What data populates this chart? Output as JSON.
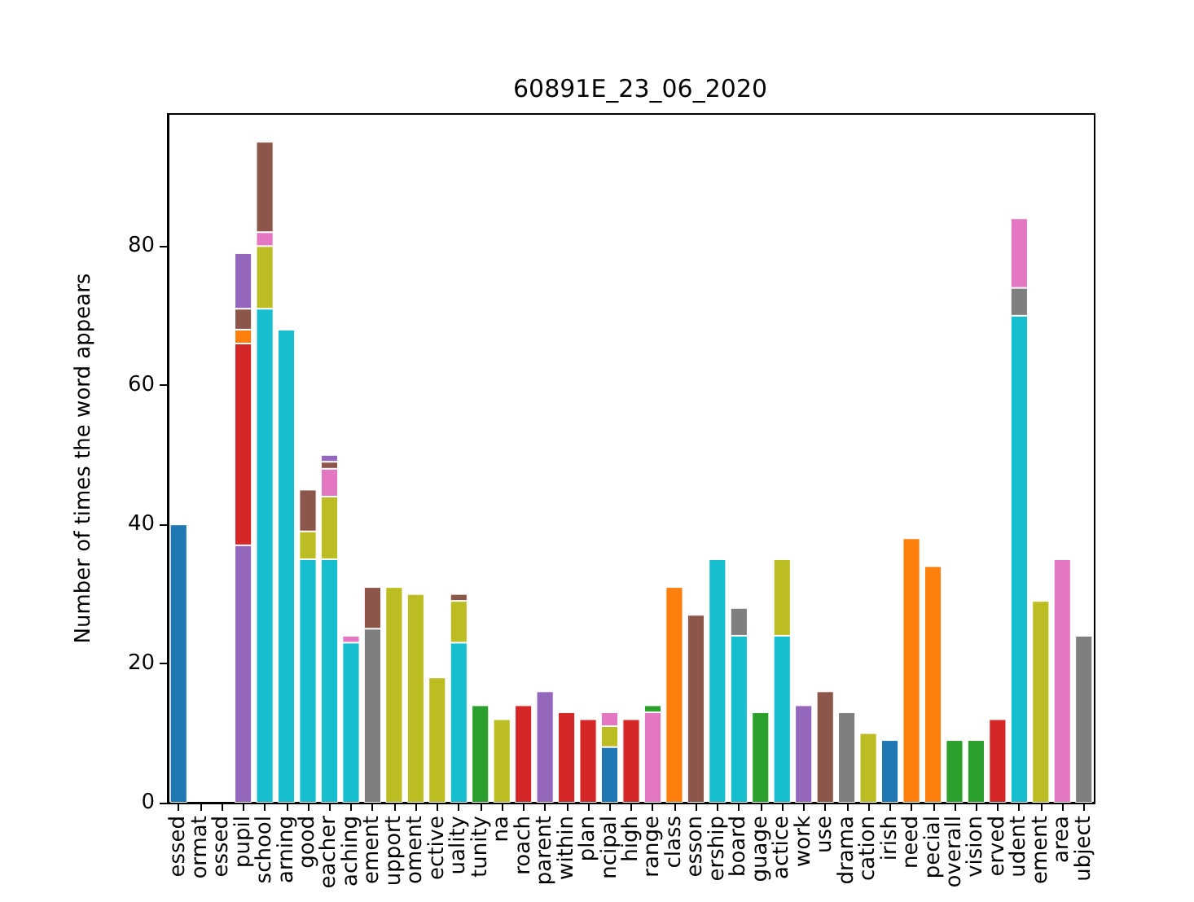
{
  "chart_data": {
    "type": "bar",
    "title": "60891E_23_06_2020",
    "ylabel": "Number of times the word appears",
    "stacked": true,
    "categories": [
      "essed",
      "ormat",
      "essed",
      "pupil",
      "school",
      "arning",
      "good",
      "eacher",
      "aching",
      "ement",
      "upport",
      "oment",
      "ective",
      "uality",
      "tunity",
      "na",
      "roach",
      "parent",
      "within",
      "plan",
      "ncipal",
      "high",
      "range",
      "class",
      "esson",
      "ership",
      "board",
      "guage",
      "actice",
      "work",
      "use",
      "drama",
      "cation",
      "irish",
      "need",
      "pecial",
      "overall",
      "vision",
      "erved",
      "udent",
      "ement",
      "area",
      "ubject"
    ],
    "series": [
      {
        "values": [
          40,
          null,
          null,
          37,
          71,
          68,
          35,
          35,
          23,
          25,
          31,
          30,
          18,
          23,
          14,
          12,
          14,
          16,
          13,
          12,
          8,
          12,
          13,
          31,
          27,
          35,
          24,
          13,
          24,
          14,
          16,
          13,
          10,
          9,
          38,
          34,
          9,
          9,
          12,
          70,
          29,
          35,
          24
        ],
        "colors": [
          "#1f77b4",
          null,
          null,
          "#9467bd",
          "#17becf",
          "#17becf",
          "#17becf",
          "#17becf",
          "#17becf",
          "#7f7f7f",
          "#bcbd22",
          "#bcbd22",
          "#bcbd22",
          "#17becf",
          "#2ca02c",
          "#bcbd22",
          "#d62728",
          "#9467bd",
          "#d62728",
          "#d62728",
          "#1f77b4",
          "#d62728",
          "#e377c2",
          "#ff7f0e",
          "#8c564b",
          "#17becf",
          "#17becf",
          "#2ca02c",
          "#17becf",
          "#9467bd",
          "#8c564b",
          "#7f7f7f",
          "#bcbd22",
          "#1f77b4",
          "#ff7f0e",
          "#ff7f0e",
          "#2ca02c",
          "#2ca02c",
          "#d62728",
          "#17becf",
          "#bcbd22",
          "#e377c2",
          "#7f7f7f"
        ]
      },
      {
        "values": [
          null,
          null,
          null,
          29,
          9,
          null,
          4,
          9,
          1,
          6,
          null,
          null,
          null,
          6,
          null,
          null,
          null,
          null,
          null,
          null,
          3,
          null,
          1,
          null,
          null,
          null,
          4,
          null,
          11,
          null,
          null,
          null,
          null,
          null,
          null,
          null,
          null,
          null,
          null,
          4,
          null,
          null,
          null
        ],
        "colors": [
          null,
          null,
          null,
          "#d62728",
          "#bcbd22",
          null,
          "#bcbd22",
          "#bcbd22",
          "#e377c2",
          "#8c564b",
          null,
          null,
          null,
          "#bcbd22",
          null,
          null,
          null,
          null,
          null,
          null,
          "#bcbd22",
          null,
          "#2ca02c",
          null,
          null,
          null,
          "#7f7f7f",
          null,
          "#bcbd22",
          null,
          null,
          null,
          null,
          null,
          null,
          null,
          null,
          null,
          null,
          "#7f7f7f",
          null,
          null,
          null
        ]
      },
      {
        "values": [
          null,
          null,
          null,
          2,
          2,
          null,
          6,
          4,
          null,
          null,
          null,
          null,
          null,
          1,
          null,
          null,
          null,
          null,
          null,
          null,
          2,
          null,
          null,
          null,
          null,
          null,
          null,
          null,
          null,
          null,
          null,
          null,
          null,
          null,
          null,
          null,
          null,
          null,
          null,
          10,
          null,
          null,
          null
        ],
        "colors": [
          null,
          null,
          null,
          "#ff7f0e",
          "#e377c2",
          null,
          "#8c564b",
          "#e377c2",
          null,
          null,
          null,
          null,
          null,
          "#8c564b",
          null,
          null,
          null,
          null,
          null,
          null,
          "#e377c2",
          null,
          null,
          null,
          null,
          null,
          null,
          null,
          null,
          null,
          null,
          null,
          null,
          null,
          null,
          null,
          null,
          null,
          null,
          "#e377c2",
          null,
          null,
          null
        ]
      },
      {
        "values": [
          null,
          null,
          null,
          3,
          13,
          null,
          null,
          1,
          null,
          null,
          null,
          null,
          null,
          null,
          null,
          null,
          null,
          null,
          null,
          null,
          null,
          null,
          null,
          null,
          null,
          null,
          null,
          null,
          null,
          null,
          null,
          null,
          null,
          null,
          null,
          null,
          null,
          null,
          null,
          null,
          null,
          null,
          null
        ],
        "colors": [
          null,
          null,
          null,
          "#8c564b",
          "#8c564b",
          null,
          null,
          "#8c564b",
          null,
          null,
          null,
          null,
          null,
          null,
          null,
          null,
          null,
          null,
          null,
          null,
          null,
          null,
          null,
          null,
          null,
          null,
          null,
          null,
          null,
          null,
          null,
          null,
          null,
          null,
          null,
          null,
          null,
          null,
          null,
          null,
          null,
          null,
          null
        ]
      },
      {
        "values": [
          null,
          null,
          null,
          8,
          null,
          null,
          null,
          1,
          null,
          null,
          null,
          null,
          null,
          null,
          null,
          null,
          null,
          null,
          null,
          null,
          null,
          null,
          null,
          null,
          null,
          null,
          null,
          null,
          null,
          null,
          null,
          null,
          null,
          null,
          null,
          null,
          null,
          null,
          null,
          null,
          null,
          null,
          null
        ],
        "colors": [
          null,
          null,
          null,
          "#9467bd",
          null,
          null,
          null,
          "#9467bd",
          null,
          null,
          null,
          null,
          null,
          null,
          null,
          null,
          null,
          null,
          null,
          null,
          null,
          null,
          null,
          null,
          null,
          null,
          null,
          null,
          null,
          null,
          null,
          null,
          null,
          null,
          null,
          null,
          null,
          null,
          null,
          null,
          null,
          null,
          null
        ]
      }
    ],
    "ylim": [
      0,
      99
    ],
    "yticks": [
      0,
      20,
      40,
      60,
      80
    ],
    "grid": false
  }
}
